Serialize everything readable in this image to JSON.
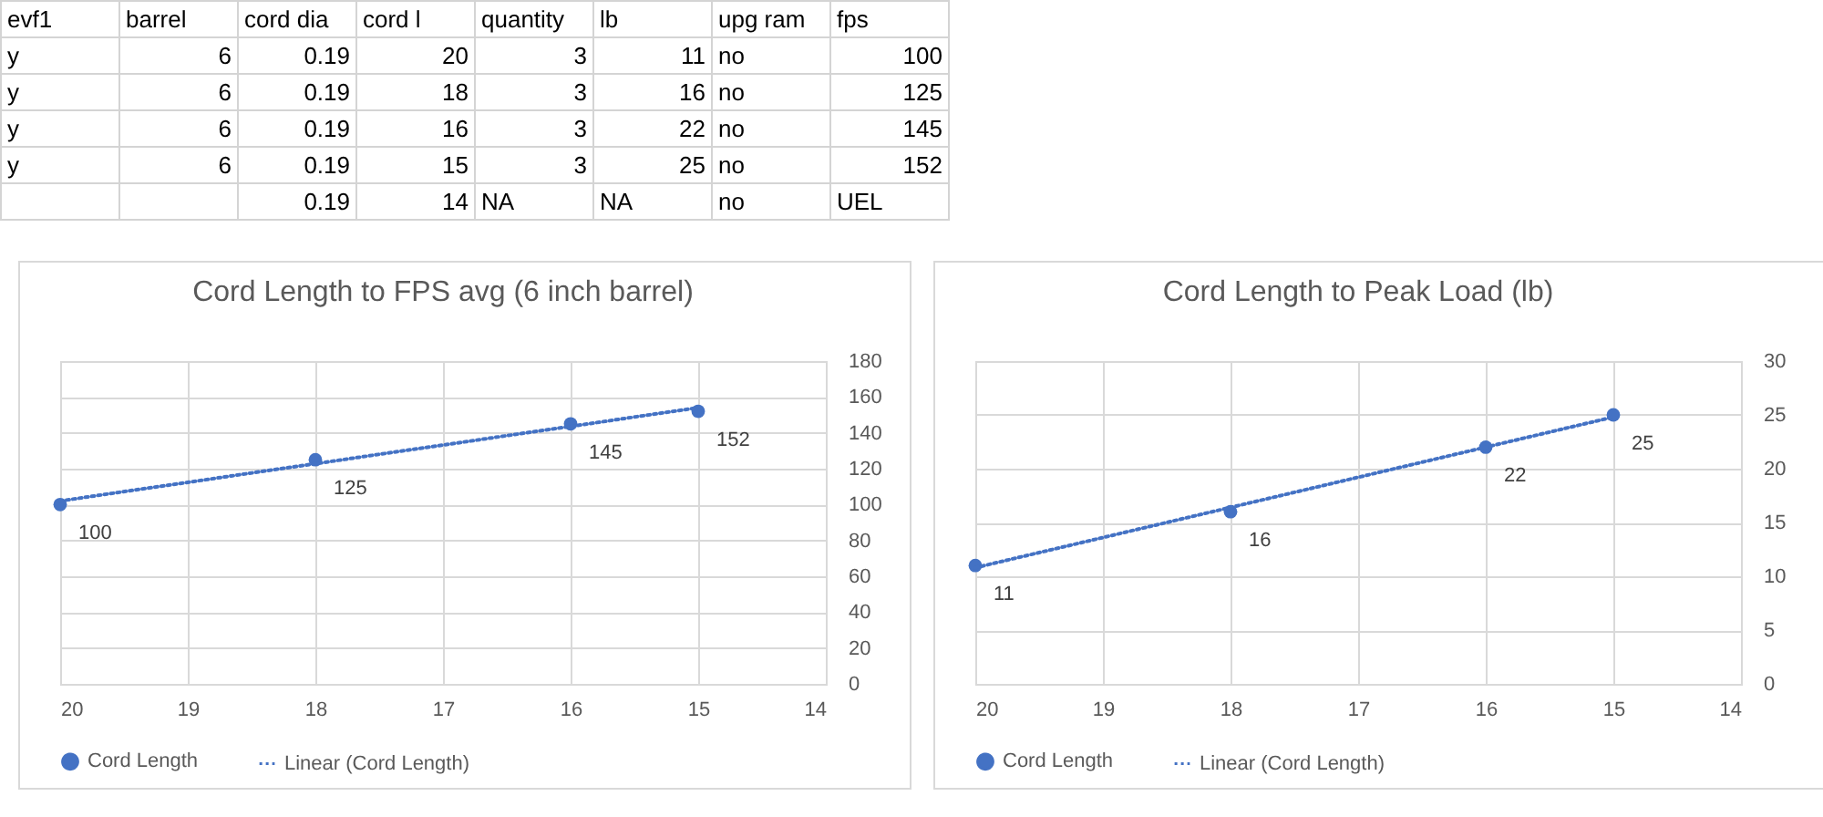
{
  "chart_data": [
    {
      "type": "other",
      "categories": [
        "evf1",
        "barrel",
        "cord dia",
        "cord l",
        "quantity",
        "lb",
        "upg ram",
        "fps"
      ],
      "annotations": [
        "y",
        "6",
        "0.19",
        "20",
        "3",
        "11",
        "no",
        "100",
        "y",
        "6",
        "0.19",
        "18",
        "3",
        "16",
        "no",
        "125",
        "y",
        "6",
        "0.19",
        "16",
        "3",
        "22",
        "no",
        "145",
        "y",
        "6",
        "0.19",
        "15",
        "3",
        "25",
        "no",
        "152",
        null,
        null,
        "0.19",
        "14",
        "NA",
        "NA",
        "no",
        "UEL"
      ]
    },
    {
      "type": "scatter",
      "title": "Cord Length to FPS avg (6 inch barrel)",
      "xlim": [
        20,
        14
      ],
      "xticks": [
        20,
        19,
        18,
        17,
        16,
        15,
        14
      ],
      "ylim": [
        0,
        180
      ],
      "yticks": [
        0,
        20,
        40,
        60,
        80,
        100,
        120,
        140,
        160,
        180
      ],
      "grid": true,
      "legend": "bottom",
      "series": [
        {
          "name": "Cord Length",
          "type": "scatter",
          "marker": "circle",
          "color": "#4472c4",
          "x": [
            20,
            18,
            16,
            15
          ],
          "values": [
            100,
            125,
            145,
            152
          ],
          "value_labels": [
            "100",
            "125",
            "145",
            "152"
          ]
        },
        {
          "name": "Linear (Cord Length)",
          "type": "line",
          "line_style": "dotted",
          "color": "#4472c4",
          "x": [
            20,
            15
          ],
          "values": [
            102,
            154
          ]
        }
      ]
    },
    {
      "type": "scatter",
      "title": "Cord Length to Peak Load (lb)",
      "xlim": [
        20,
        14
      ],
      "xticks": [
        20,
        19,
        18,
        17,
        16,
        15,
        14
      ],
      "ylim": [
        0,
        30
      ],
      "yticks": [
        0,
        5,
        10,
        15,
        20,
        25,
        30
      ],
      "grid": true,
      "legend": "bottom",
      "series": [
        {
          "name": "Cord Length",
          "type": "scatter",
          "marker": "circle",
          "color": "#4472c4",
          "x": [
            20,
            18,
            16,
            15
          ],
          "values": [
            11,
            16,
            22,
            25
          ],
          "value_labels": [
            "11",
            "16",
            "22",
            "25"
          ]
        },
        {
          "name": "Linear (Cord Length)",
          "type": "line",
          "line_style": "dotted",
          "color": "#4472c4",
          "x": [
            20,
            15
          ],
          "values": [
            10.8,
            24.8
          ]
        }
      ]
    }
  ]
}
